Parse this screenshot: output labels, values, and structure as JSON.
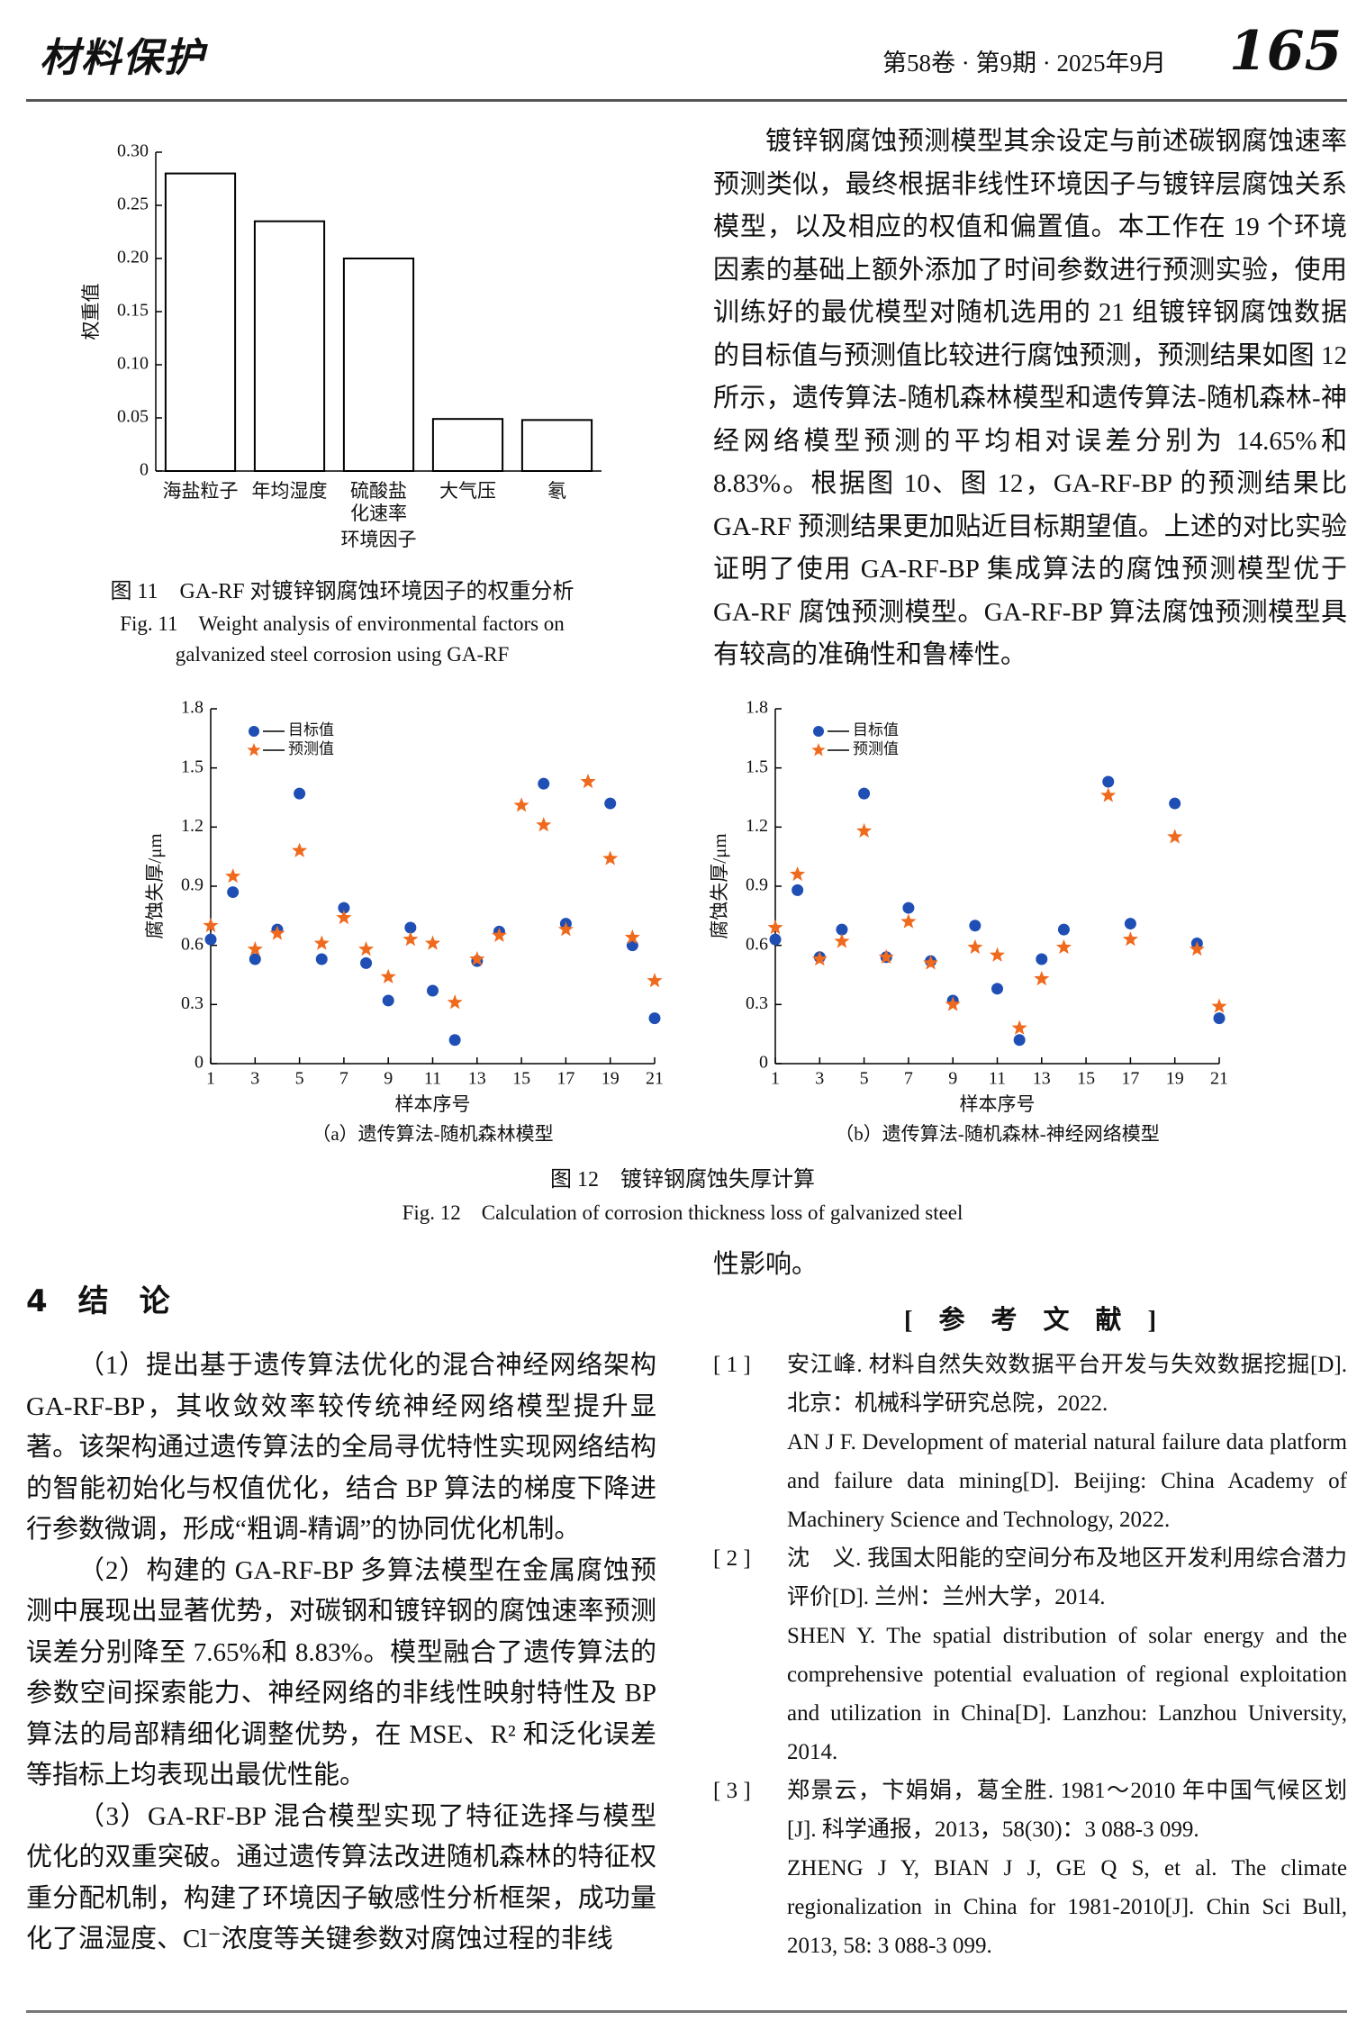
{
  "header": {
    "journal": "材料保护",
    "issue": "第58卷 · 第9期 · 2025年9月",
    "page": "165"
  },
  "chart_data": [
    {
      "type": "bar",
      "categories": [
        "海盐粒子",
        "年均湿度",
        "硫酸盐化速率",
        "大气压",
        "氡"
      ],
      "values": [
        0.28,
        0.235,
        0.2,
        0.049,
        0.048
      ],
      "color": "#ffffff",
      "edgecolor": "#000000",
      "ylim": [
        0,
        0.3
      ],
      "yticks": [
        0,
        0.05,
        {
          "value": 0.1,
          "label": "0.10"
        },
        0.15,
        {
          "value": 0.2,
          "label": "0.20"
        },
        0.25,
        {
          "value": 0.3,
          "label": "0.30"
        }
      ],
      "xlabel": "环境因子",
      "ylabel": "权重值"
    },
    {
      "type": "scatter",
      "caption": "（a）遗传算法-随机森林模型",
      "x": [
        1,
        2,
        3,
        4,
        5,
        6,
        7,
        8,
        9,
        10,
        11,
        12,
        13,
        14,
        15,
        16,
        17,
        18,
        19,
        20,
        21
      ],
      "series": [
        {
          "name": "目标值",
          "color": "#1f4fb4",
          "marker": "circle",
          "values": [
            0.63,
            0.87,
            0.53,
            0.68,
            1.37,
            0.53,
            0.79,
            0.51,
            0.32,
            0.69,
            0.37,
            0.12,
            0.52,
            0.67,
            null,
            1.42,
            0.71,
            null,
            1.32,
            0.6,
            0.23
          ]
        },
        {
          "name": "预测值",
          "color": "#f06a1e",
          "marker": "star",
          "values": [
            0.7,
            0.95,
            0.58,
            0.66,
            1.08,
            0.61,
            0.74,
            0.58,
            0.44,
            0.63,
            0.61,
            0.31,
            0.53,
            0.65,
            1.31,
            1.21,
            0.68,
            1.43,
            1.04,
            0.64,
            0.42
          ]
        }
      ],
      "xlim": [
        1,
        21
      ],
      "xticks": [
        1,
        3,
        5,
        7,
        9,
        11,
        13,
        15,
        17,
        19,
        21
      ],
      "ylim": [
        0,
        1.8
      ],
      "yticks": [
        0,
        0.3,
        0.6,
        0.9,
        1.2,
        1.5,
        1.8
      ],
      "xlabel": "样本序号",
      "ylabel": "腐蚀失厚/μm"
    },
    {
      "type": "scatter",
      "caption": "（b）遗传算法-随机森林-神经网络模型",
      "x": [
        1,
        2,
        3,
        4,
        5,
        6,
        7,
        8,
        9,
        10,
        11,
        12,
        13,
        14,
        15,
        16,
        17,
        18,
        19,
        20,
        21
      ],
      "series": [
        {
          "name": "目标值",
          "color": "#1f4fb4",
          "marker": "circle",
          "values": [
            0.63,
            0.88,
            0.54,
            0.68,
            1.37,
            0.54,
            0.79,
            0.52,
            0.32,
            0.7,
            0.38,
            0.12,
            0.53,
            0.68,
            null,
            1.43,
            0.71,
            null,
            1.32,
            0.61,
            0.23
          ]
        },
        {
          "name": "预测值",
          "color": "#f06a1e",
          "marker": "star",
          "values": [
            0.69,
            0.96,
            0.53,
            0.62,
            1.18,
            0.54,
            0.72,
            0.51,
            0.3,
            0.59,
            0.55,
            0.18,
            0.43,
            0.59,
            null,
            1.36,
            0.63,
            null,
            1.15,
            0.58,
            0.29
          ]
        }
      ],
      "xlim": [
        1,
        21
      ],
      "xticks": [
        1,
        3,
        5,
        7,
        9,
        11,
        13,
        15,
        17,
        19,
        21
      ],
      "ylim": [
        0,
        1.8
      ],
      "yticks": [
        0,
        0.3,
        0.6,
        0.9,
        1.2,
        1.5,
        1.8
      ],
      "xlabel": "样本序号",
      "ylabel": "腐蚀失厚/μm"
    }
  ],
  "figure11": {
    "caption_cn": "图 11　GA-RF 对镀锌钢腐蚀环境因子的权重分析",
    "caption_en": "Fig. 11　Weight analysis of environmental factors on galvanized steel corrosion using GA-RF"
  },
  "right_paragraph": "镀锌钢腐蚀预测模型其余设定与前述碳钢腐蚀速率预测类似，最终根据非线性环境因子与镀锌层腐蚀关系模型，以及相应的权值和偏置值。本工作在 19 个环境因素的基础上额外添加了时间参数进行预测实验，使用训练好的最优模型对随机选用的 21 组镀锌钢腐蚀数据的目标值与预测值比较进行腐蚀预测，预测结果如图 12 所示，遗传算法-随机森林模型和遗传算法-随机森林-神经网络模型预测的平均相对误差分别为 14.65%和 8.83%。根据图 10、图 12，GA-RF-BP 的预测结果比 GA-RF 预测结果更加贴近目标期望值。上述的对比实验证明了使用 GA-RF-BP 集成算法的腐蚀预测模型优于 GA-RF 腐蚀预测模型。GA-RF-BP 算法腐蚀预测模型具有较高的准确性和鲁棒性。",
  "figure12": {
    "caption_cn": "图 12　镀锌钢腐蚀失厚计算",
    "caption_en": "Fig. 12　Calculation of corrosion thickness loss of galvanized steel"
  },
  "section": {
    "title": "4　结　论",
    "paragraphs": [
      "（1）提出基于遗传算法优化的混合神经网络架构 GA-RF-BP，其收敛效率较传统神经网络模型提升显著。该架构通过遗传算法的全局寻优特性实现网络结构的智能初始化与权值优化，结合 BP 算法的梯度下降进行参数微调，形成“粗调-精调”的协同优化机制。",
      "（2）构建的 GA-RF-BP 多算法模型在金属腐蚀预测中展现出显著优势，对碳钢和镀锌钢的腐蚀速率预测误差分别降至 7.65%和 8.83%。模型融合了遗传算法的参数空间探索能力、神经网络的非线性映射特性及 BP 算法的局部精细化调整优势，在 MSE、R² 和泛化误差等指标上均表现出最优性能。",
      "（3）GA-RF-BP 混合模型实现了特征选择与模型优化的双重突破。通过遗传算法改进随机森林的特征权重分配机制，构建了环境因子敏感性分析框架，成功量化了温湿度、Cl⁻浓度等关键参数对腐蚀过程的非线"
    ]
  },
  "continuation": "性影响。",
  "references": {
    "title": "[　参　考　文　献　]",
    "items": [
      {
        "num": "[ 1 ]",
        "cn": "安江峰. 材料自然失效数据平台开发与失效数据挖掘[D]. 北京：机械科学研究总院，2022.",
        "en": "AN J F. Development of material natural failure data platform and failure data mining[D]. Beijing: China Academy of Machinery Science and Technology, 2022."
      },
      {
        "num": "[ 2 ]",
        "cn": "沈　义. 我国太阳能的空间分布及地区开发利用综合潜力评价[D]. 兰州：兰州大学，2014.",
        "en": "SHEN Y. The spatial distribution of solar energy and the comprehensive potential evaluation of regional exploitation and utilization in China[D]. Lanzhou: Lanzhou University, 2014."
      },
      {
        "num": "[ 3 ]",
        "cn": "郑景云，卞娟娟，葛全胜. 1981～2010 年中国气候区划[J]. 科学通报，2013，58(30)：3 088-3 099.",
        "en": "ZHENG J Y, BIAN J J, GE Q S, et al. The climate regionalization in China for 1981-2010[J]. Chin Sci Bull, 2013, 58: 3 088-3 099."
      }
    ]
  }
}
